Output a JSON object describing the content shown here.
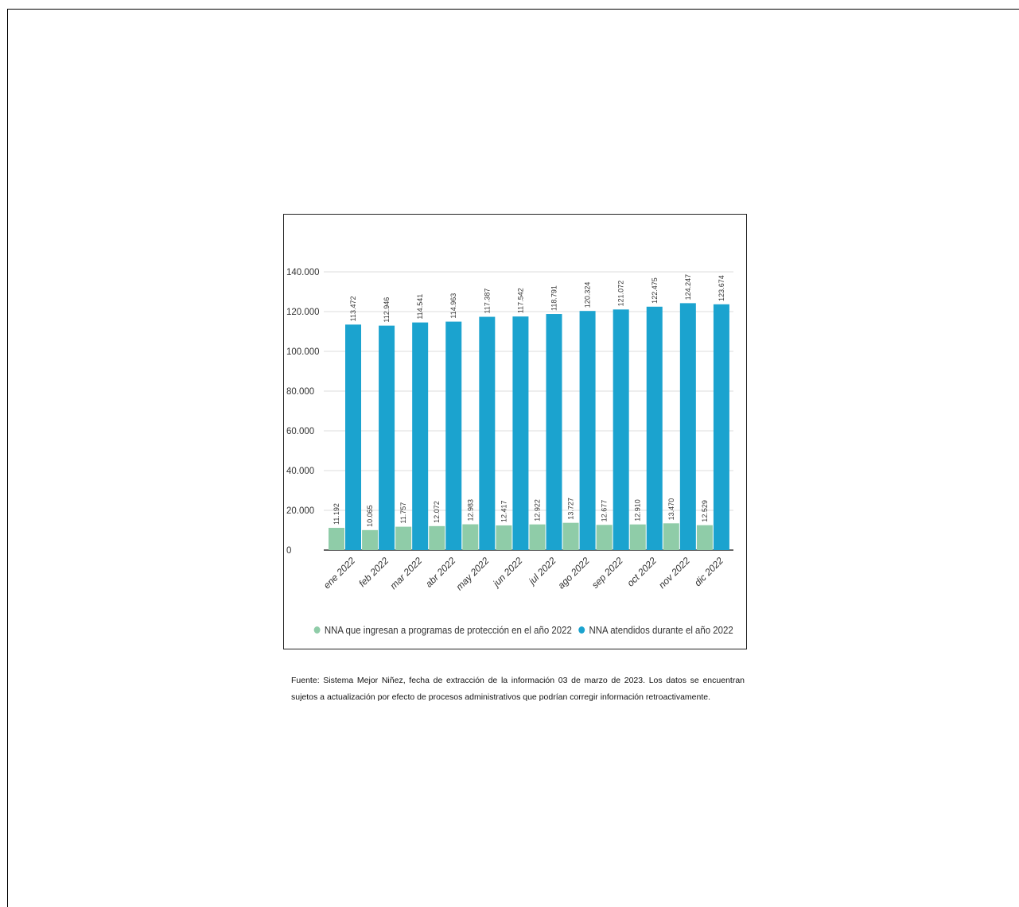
{
  "chart_data": {
    "type": "bar",
    "categories": [
      "ene 2022",
      "feb 2022",
      "mar 2022",
      "abr 2022",
      "may 2022",
      "jun 2022",
      "jul 2022",
      "ago 2022",
      "sep 2022",
      "oct 2022",
      "nov 2022",
      "dic 2022"
    ],
    "series": [
      {
        "name": "NNA que ingresan a programas de protección en el año 2022",
        "color": "#8fcca8",
        "values": [
          11192,
          10065,
          11757,
          12072,
          12983,
          12417,
          12922,
          13727,
          12677,
          12910,
          13470,
          12529
        ],
        "labels": [
          "11.192",
          "10.065",
          "11.757",
          "12.072",
          "12.983",
          "12.417",
          "12.922",
          "13.727",
          "12.677",
          "12.910",
          "13.470",
          "12.529"
        ]
      },
      {
        "name": "NNA atendidos durante el año 2022",
        "color": "#1ba3cf",
        "values": [
          113472,
          112946,
          114541,
          114963,
          117387,
          117542,
          118791,
          120324,
          121072,
          122475,
          124247,
          123674
        ],
        "labels": [
          "113.472",
          "112.946",
          "114.541",
          "114.963",
          "117.387",
          "117.542",
          "118.791",
          "120.324",
          "121.072",
          "122.475",
          "124.247",
          "123.674"
        ]
      }
    ],
    "ylim": [
      0,
      140000
    ],
    "yticks": [
      0,
      20000,
      40000,
      60000,
      80000,
      100000,
      120000,
      140000
    ],
    "ytick_labels": [
      "0",
      "20.000",
      "40.000",
      "60.000",
      "80.000",
      "100.000",
      "120.000",
      "140.000"
    ],
    "grid": true,
    "legend_position": "bottom",
    "xlabel": "",
    "ylabel": ""
  },
  "source_note": "Fuente: Sistema Mejor Niñez, fecha de extracción de la información 03 de marzo de 2023. Los datos se encuentran sujetos a actualización por efecto de procesos administrativos que podrían corregir información retroactivamente."
}
